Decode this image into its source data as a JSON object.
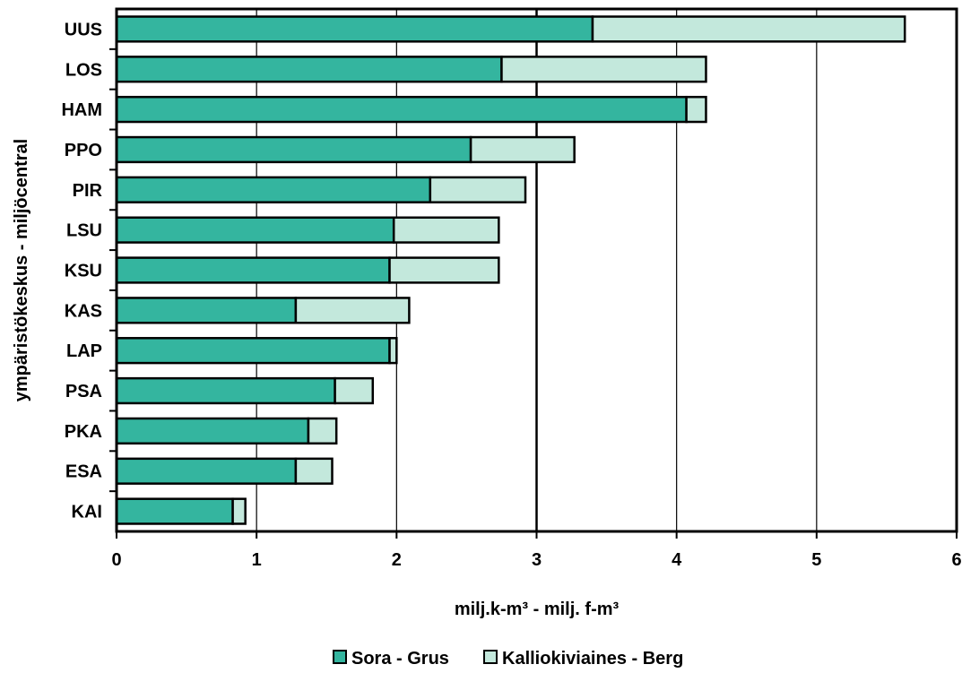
{
  "chart_data": {
    "type": "bar",
    "orientation": "horizontal",
    "stacked": true,
    "categories": [
      "UUS",
      "LOS",
      "HAM",
      "PPO",
      "PIR",
      "LSU",
      "KSU",
      "KAS",
      "LAP",
      "PSA",
      "PKA",
      "ESA",
      "KAI"
    ],
    "series": [
      {
        "name": "Sora - Grus",
        "values": [
          3.4,
          2.75,
          4.07,
          2.53,
          2.24,
          1.98,
          1.95,
          1.28,
          1.95,
          1.56,
          1.37,
          1.28,
          0.83
        ],
        "color": "#34b59f"
      },
      {
        "name": "Kalliokiviaines - Berg",
        "values": [
          2.23,
          1.46,
          0.14,
          0.74,
          0.68,
          0.75,
          0.78,
          0.81,
          0.05,
          0.27,
          0.2,
          0.26,
          0.09
        ],
        "color": "#c3e8dc"
      }
    ],
    "xlabel": "milj.k-m³ - milj. f-m³",
    "ylabel": "ympäristökeskus - miljöcentral",
    "xlim": [
      0,
      6
    ],
    "xticks": [
      "0",
      "1",
      "2",
      "3",
      "4",
      "5",
      "6"
    ],
    "grid": "vertical",
    "legend": "bottom"
  }
}
